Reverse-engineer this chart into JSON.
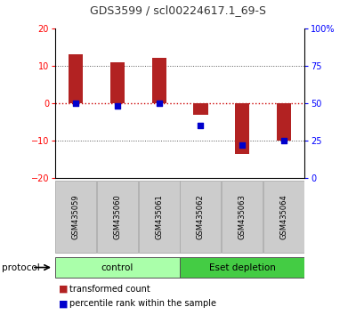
{
  "title": "GDS3599 / scl00224617.1_69-S",
  "samples": [
    "GSM435059",
    "GSM435060",
    "GSM435061",
    "GSM435062",
    "GSM435063",
    "GSM435064"
  ],
  "red_bars": [
    13.0,
    11.0,
    12.0,
    -3.0,
    -13.5,
    -10.0
  ],
  "blue_dots": [
    50.0,
    48.0,
    50.0,
    35.0,
    22.0,
    25.0
  ],
  "ylim_left": [
    -20,
    20
  ],
  "ylim_right": [
    0,
    100
  ],
  "yticks_left": [
    -20,
    -10,
    0,
    10,
    20
  ],
  "yticks_right": [
    0,
    25,
    50,
    75,
    100
  ],
  "ytick_labels_right": [
    "0",
    "25",
    "50",
    "75",
    "100%"
  ],
  "bar_color": "#b22222",
  "dot_color": "#0000cc",
  "hline_color": "#cc0000",
  "grid_color": "#555555",
  "protocol_groups": [
    {
      "label": "control",
      "start": 0,
      "end": 3,
      "color": "#aaffaa"
    },
    {
      "label": "Eset depletion",
      "start": 3,
      "end": 6,
      "color": "#44cc44"
    }
  ],
  "protocol_label": "protocol",
  "legend_red": "transformed count",
  "legend_blue": "percentile rank within the sample",
  "bar_width": 0.35,
  "title_color": "#333333",
  "title_fontsize": 9,
  "axis_fontsize": 7,
  "label_fontsize": 6,
  "proto_fontsize": 7.5,
  "legend_fontsize": 7
}
